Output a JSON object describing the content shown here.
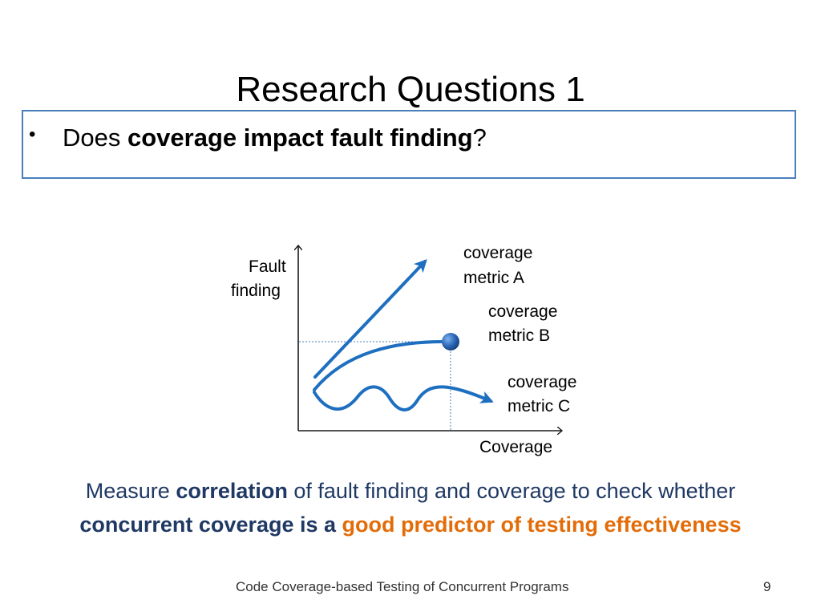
{
  "slide": {
    "title": "Research Questions 1",
    "bullet": {
      "lead": "Does ",
      "bold": "coverage impact fault finding",
      "tail": "?"
    }
  },
  "diagram": {
    "y_axis_label_line1": "Fault",
    "y_axis_label_line2": "finding",
    "x_axis_label": "Coverage",
    "curves": [
      {
        "label_line1": "coverage",
        "label_line2": "metric A"
      },
      {
        "label_line1": "coverage",
        "label_line2": "metric B"
      },
      {
        "label_line1": "coverage",
        "label_line2": "metric C"
      }
    ],
    "colors": {
      "curve": "#1e6fc0",
      "axis": "#1a1a1a",
      "guide": "#4a7ebb"
    }
  },
  "conclusion": {
    "part1": "Measure ",
    "part2": "correlation",
    "part3": " of fault  finding and coverage to check whether",
    "part4": "concurrent coverage is a ",
    "part5": "good predictor of testing effectiveness"
  },
  "footer": {
    "text": "Code Coverage-based Testing of Concurrent Programs",
    "page_number": "9"
  }
}
